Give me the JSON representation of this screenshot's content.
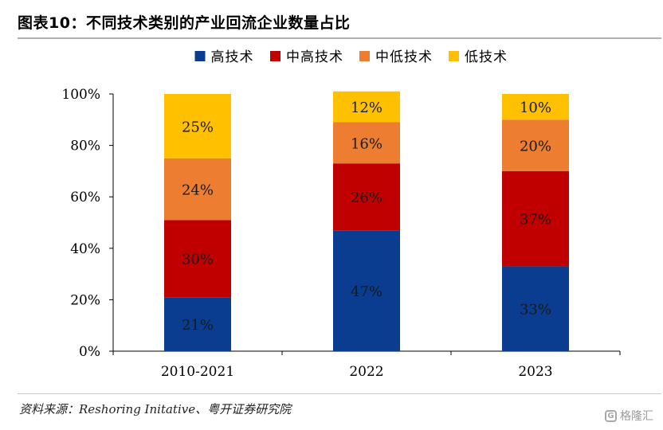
{
  "figure": {
    "title": "图表10：不同技术类别的产业回流企业数量占比",
    "source": "资料来源：Reshoring Initative、粤开证券研究院",
    "watermark": "格隆汇"
  },
  "chart_data": {
    "type": "bar",
    "stacked": true,
    "categories": [
      "2010-2021",
      "2022",
      "2023"
    ],
    "series": [
      {
        "name": "高技术",
        "color": "#0a3d8f",
        "values": [
          21,
          47,
          33
        ],
        "labels": [
          "21%",
          "47%",
          "33%"
        ]
      },
      {
        "name": "中高技术",
        "color": "#c00000",
        "values": [
          30,
          26,
          37
        ],
        "labels": [
          "30%",
          "26%",
          "37%"
        ]
      },
      {
        "name": "中低技术",
        "color": "#ed7d31",
        "values": [
          24,
          16,
          20
        ],
        "labels": [
          "24%",
          "16%",
          "20%"
        ]
      },
      {
        "name": "低技术",
        "color": "#ffc000",
        "values": [
          25,
          12,
          10
        ],
        "labels": [
          "25%",
          "12%",
          "10%"
        ]
      }
    ],
    "ylim": [
      0,
      100
    ],
    "yticks": [
      0,
      20,
      40,
      60,
      80,
      100
    ],
    "ytick_labels": [
      "0%",
      "20%",
      "40%",
      "60%",
      "80%",
      "100%"
    ],
    "grid": false,
    "legend_position": "top-center"
  }
}
